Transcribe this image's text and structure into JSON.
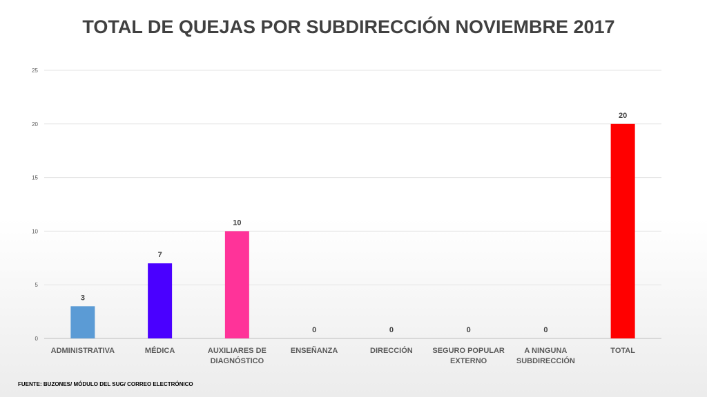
{
  "title": "TOTAL DE QUEJAS POR SUBDIRECCIÓN NOVIEMBRE 2017",
  "source": "FUENTE: BUZONES/ MÓDULO DEL SUG/ CORREO ELECTRÓNICO",
  "chart_data": {
    "type": "bar",
    "title": "TOTAL DE QUEJAS POR SUBDIRECCIÓN NOVIEMBRE 2017",
    "categories": [
      [
        "ADMINISTRATIVA"
      ],
      [
        "MÉDICA"
      ],
      [
        "AUXILIARES DE",
        "DIAGNÓSTICO"
      ],
      [
        "ENSEÑANZA"
      ],
      [
        "DIRECCIÓN"
      ],
      [
        "SEGURO POPULAR",
        "EXTERNO"
      ],
      [
        "A NINGUNA",
        "SUBDIRECCIÓN"
      ],
      [
        "TOTAL"
      ]
    ],
    "values": [
      3,
      7,
      10,
      0,
      0,
      0,
      0,
      20
    ],
    "colors": [
      "#5b9bd5",
      "#4a00ff",
      "#ff3399",
      "#5b9bd5",
      "#5b9bd5",
      "#5b9bd5",
      "#5b9bd5",
      "#ff0000"
    ],
    "ylim": [
      0,
      25
    ],
    "yticks": [
      0,
      5,
      10,
      15,
      20,
      25
    ],
    "grid": true,
    "legend": "none",
    "xlabel": "",
    "ylabel": ""
  }
}
